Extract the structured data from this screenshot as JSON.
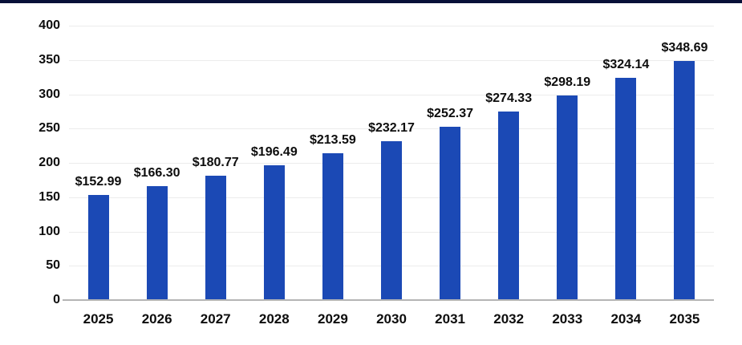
{
  "page": {
    "background": "#ffffff",
    "top_strip_color": "#081038"
  },
  "chart_data": {
    "type": "bar",
    "title": "",
    "xlabel": "",
    "ylabel": "",
    "categories": [
      "2025",
      "2026",
      "2027",
      "2028",
      "2029",
      "2030",
      "2031",
      "2032",
      "2033",
      "2034",
      "2035"
    ],
    "values": [
      152.99,
      166.3,
      180.77,
      196.49,
      213.59,
      232.17,
      252.37,
      274.33,
      298.19,
      324.14,
      348.69
    ],
    "value_labels": [
      "$152.99",
      "$166.30",
      "$180.77",
      "$196.49",
      "$213.59",
      "$232.17",
      "$252.37",
      "$274.33",
      "$298.19",
      "$324.14",
      "$348.69"
    ],
    "ylim": [
      0,
      400
    ],
    "yticks": [
      0,
      50,
      100,
      150,
      200,
      250,
      300,
      350,
      400
    ],
    "bar_color": "#1B49B5",
    "grid": true,
    "gridline_color": "#ececec",
    "axis_line_color": "#b5b5b5",
    "label_color": "#0d0d0d",
    "legend_position": "none"
  }
}
